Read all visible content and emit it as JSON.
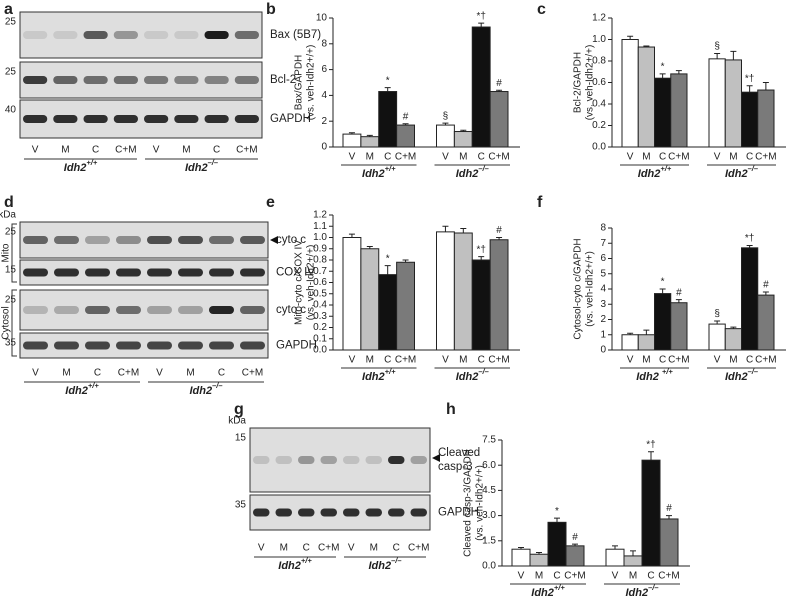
{
  "panel_labels": [
    "a",
    "b",
    "c",
    "d",
    "e",
    "f",
    "g",
    "h"
  ],
  "blots": [
    {
      "markers": [
        "25",
        "25",
        "40"
      ],
      "proteins": [
        [
          "Bax (5B7)"
        ],
        [
          "Bcl-2"
        ],
        [
          "GAPDH"
        ]
      ],
      "lanes": [
        "V",
        "M",
        "C",
        "C+M",
        "V",
        "M",
        "C",
        "C+M"
      ],
      "groups": [
        {
          "text": "Idh2",
          "sup": "+/+"
        },
        {
          "text": "Idh2",
          "sup": "–/–"
        }
      ]
    },
    {
      "unit": "kDa",
      "markers": [
        "25",
        "15",
        "25",
        "35"
      ],
      "proteins": [
        [
          "cyto c"
        ],
        [
          "COX IV"
        ],
        [
          "cyto c"
        ],
        [
          "GAPDH"
        ]
      ],
      "fractions": [
        "Mito",
        "Cytosol"
      ],
      "lanes": [
        "V",
        "M",
        "C",
        "C+M",
        "V",
        "M",
        "C",
        "C+M"
      ],
      "groups": [
        {
          "text": "Idh2",
          "sup": "+/+"
        },
        {
          "text": "Idh2",
          "sup": "–/–"
        }
      ]
    },
    {
      "unit": "kDa",
      "markers": [
        "15",
        "35"
      ],
      "proteins": [
        [
          "Cleaved",
          "casp-3"
        ],
        [
          "GAPDH"
        ]
      ],
      "lanes": [
        "V",
        "M",
        "C",
        "C+M",
        "V",
        "M",
        "C",
        "C+M"
      ],
      "groups": [
        {
          "text": "Idh2",
          "sup": "+/+"
        },
        {
          "text": "Idh2",
          "sup": "–/–"
        }
      ]
    }
  ],
  "chart_data": [
    {
      "type": "bar",
      "ylabel": [
        "Bax/GAPDH",
        "(vs. veh-Idh2+/+)"
      ],
      "categories": [
        "V",
        "M",
        "C",
        "C+M",
        "V",
        "M",
        "C",
        "C+M"
      ],
      "groups": [
        {
          "text": "Idh2",
          "sup": "+/+"
        },
        {
          "text": "Idh2",
          "sup": "–/–"
        }
      ],
      "values": [
        1.0,
        0.8,
        4.3,
        1.7,
        1.7,
        1.2,
        9.3,
        4.3
      ],
      "errors": [
        0.1,
        0.1,
        0.3,
        0.1,
        0.15,
        0.1,
        0.3,
        0.1
      ],
      "annotations": [
        null,
        null,
        "*",
        "#",
        "§",
        null,
        "*†",
        "#"
      ],
      "colors": [
        "#ffffff",
        "#c0c0c0",
        "#111111",
        "#7a7a7a",
        "#ffffff",
        "#c0c0c0",
        "#111111",
        "#7a7a7a"
      ],
      "ylim": [
        0,
        10
      ],
      "yticks": [
        0,
        2,
        4,
        6,
        8,
        10
      ]
    },
    {
      "type": "bar",
      "ylabel": [
        "Bcl-2/GAPDH",
        "(vs. veh-Idh2+/+)"
      ],
      "categories": [
        "V",
        "M",
        "C",
        "C+M",
        "V",
        "M",
        "C",
        "C+M"
      ],
      "groups": [
        {
          "text": "Idh2",
          "sup": "+/+"
        },
        {
          "text": "Idh2",
          "sup": "–/–"
        }
      ],
      "values": [
        1.0,
        0.93,
        0.64,
        0.68,
        0.82,
        0.81,
        0.51,
        0.53
      ],
      "errors": [
        0.03,
        0.01,
        0.04,
        0.03,
        0.05,
        0.08,
        0.06,
        0.07
      ],
      "annotations": [
        null,
        null,
        "*",
        null,
        "§",
        null,
        "*†",
        null
      ],
      "colors": [
        "#ffffff",
        "#c0c0c0",
        "#111111",
        "#7a7a7a",
        "#ffffff",
        "#c0c0c0",
        "#111111",
        "#7a7a7a"
      ],
      "ylim": [
        0,
        1.2
      ],
      "yticks": [
        {
          "value": 0,
          "label": "0.0"
        },
        0.2,
        0.4,
        0.6,
        0.8,
        {
          "value": 1,
          "label": "1.0"
        },
        1.2
      ]
    },
    {
      "type": "bar",
      "ylabel": [
        "Mito-cyto c/COX IV",
        "(vs. veh-Idh2+/+)"
      ],
      "categories": [
        "V",
        "M",
        "C",
        "C+M",
        "V",
        "M",
        "C",
        "C+M"
      ],
      "groups": [
        {
          "text": "Idh2",
          "sup": "+/+"
        },
        {
          "text": "Idh2",
          "sup": "–/–"
        }
      ],
      "values": [
        1.0,
        0.9,
        0.67,
        0.78,
        1.05,
        1.04,
        0.8,
        0.98
      ],
      "errors": [
        0.03,
        0.02,
        0.08,
        0.02,
        0.05,
        0.04,
        0.03,
        0.02
      ],
      "annotations": [
        null,
        null,
        "*",
        null,
        null,
        null,
        "*†",
        "#"
      ],
      "colors": [
        "#ffffff",
        "#c0c0c0",
        "#111111",
        "#7a7a7a",
        "#ffffff",
        "#c0c0c0",
        "#111111",
        "#7a7a7a"
      ],
      "ylim": [
        0,
        1.2
      ],
      "yticks": [
        {
          "value": 0,
          "label": "0.0"
        },
        0.1,
        0.2,
        0.3,
        0.4,
        0.5,
        0.6,
        0.7,
        0.8,
        0.9,
        {
          "value": 1,
          "label": "1.0"
        },
        1.1,
        1.2
      ]
    },
    {
      "type": "bar",
      "ylabel": [
        "Cytosol-cyto c/GAPDH",
        "(vs. veh-Idh2+/+)"
      ],
      "categories": [
        "V",
        "M",
        "C",
        "C+M",
        "V",
        "M",
        "C",
        "C+M"
      ],
      "groups": [
        {
          "text": "Idh2 ",
          "sup": "+/+"
        },
        {
          "text": "Idh2",
          "sup": "–/–"
        }
      ],
      "values": [
        1.0,
        1.0,
        3.7,
        3.1,
        1.7,
        1.4,
        6.7,
        3.6
      ],
      "errors": [
        0.1,
        0.3,
        0.3,
        0.2,
        0.2,
        0.1,
        0.15,
        0.2
      ],
      "annotations": [
        null,
        null,
        "*",
        "#",
        "§",
        null,
        "*†",
        "#"
      ],
      "colors": [
        "#ffffff",
        "#c0c0c0",
        "#111111",
        "#7a7a7a",
        "#ffffff",
        "#c0c0c0",
        "#111111",
        "#7a7a7a"
      ],
      "ylim": [
        0,
        8
      ],
      "yticks": [
        0,
        1,
        2,
        3,
        4,
        5,
        6,
        7,
        8
      ]
    },
    {
      "type": "bar",
      "ylabel": [
        "Cleaved casp-3/GAPDH",
        "(vs. veh-Idh2+/+)"
      ],
      "categories": [
        "V",
        "M",
        "C",
        "C+M",
        "V",
        "M",
        "C",
        "C+M"
      ],
      "groups": [
        {
          "text": "Idh2",
          "sup": "+/+"
        },
        {
          "text": "Idh2",
          "sup": "–/–"
        }
      ],
      "values": [
        1.0,
        0.7,
        2.6,
        1.2,
        1.0,
        0.6,
        6.3,
        2.8
      ],
      "errors": [
        0.1,
        0.1,
        0.25,
        0.1,
        0.2,
        0.3,
        0.5,
        0.2
      ],
      "annotations": [
        null,
        null,
        "*",
        "#",
        null,
        null,
        "*†",
        "#"
      ],
      "colors": [
        "#ffffff",
        "#c0c0c0",
        "#111111",
        "#7a7a7a",
        "#ffffff",
        "#c0c0c0",
        "#111111",
        "#7a7a7a"
      ],
      "ylim": [
        0,
        7.5
      ],
      "yticks": [
        {
          "value": 0,
          "label": "0.0"
        },
        1.5,
        {
          "value": 3,
          "label": "3.0"
        },
        4.5,
        {
          "value": 6,
          "label": "6.0"
        },
        7.5
      ]
    }
  ]
}
